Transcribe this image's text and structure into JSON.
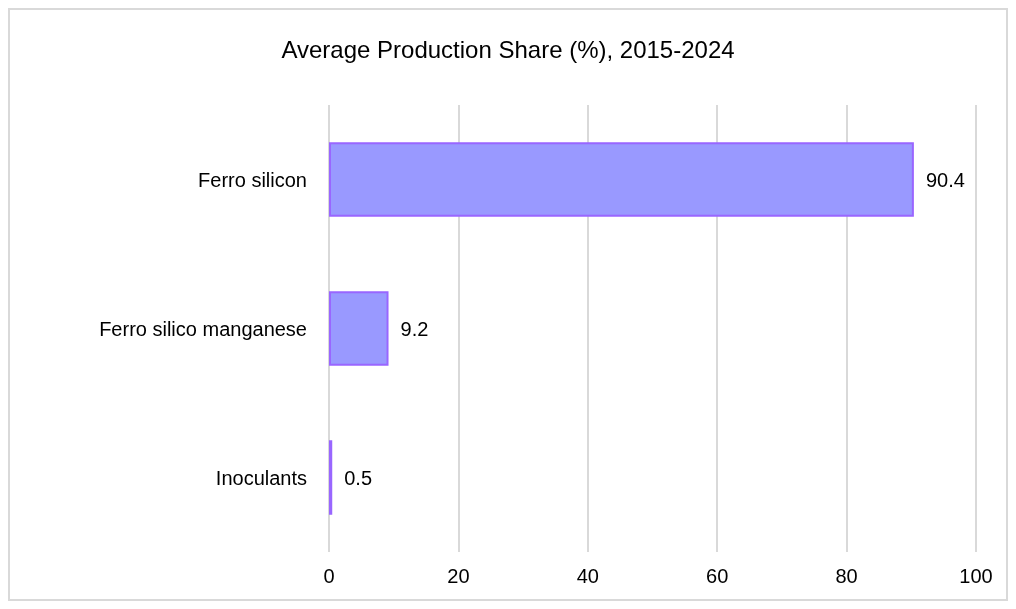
{
  "chart_data": {
    "type": "bar",
    "orientation": "horizontal",
    "title": "Average Production Share (%), 2015-2024",
    "categories": [
      "Ferro silicon",
      "Ferro silico manganese",
      "Inoculants"
    ],
    "values": [
      90.4,
      9.2,
      0.5
    ],
    "color": "#9999ff",
    "xlim": [
      0,
      100
    ],
    "xticks": [
      0,
      20,
      40,
      60,
      80,
      100
    ],
    "grid": "x",
    "data_labels": true
  }
}
